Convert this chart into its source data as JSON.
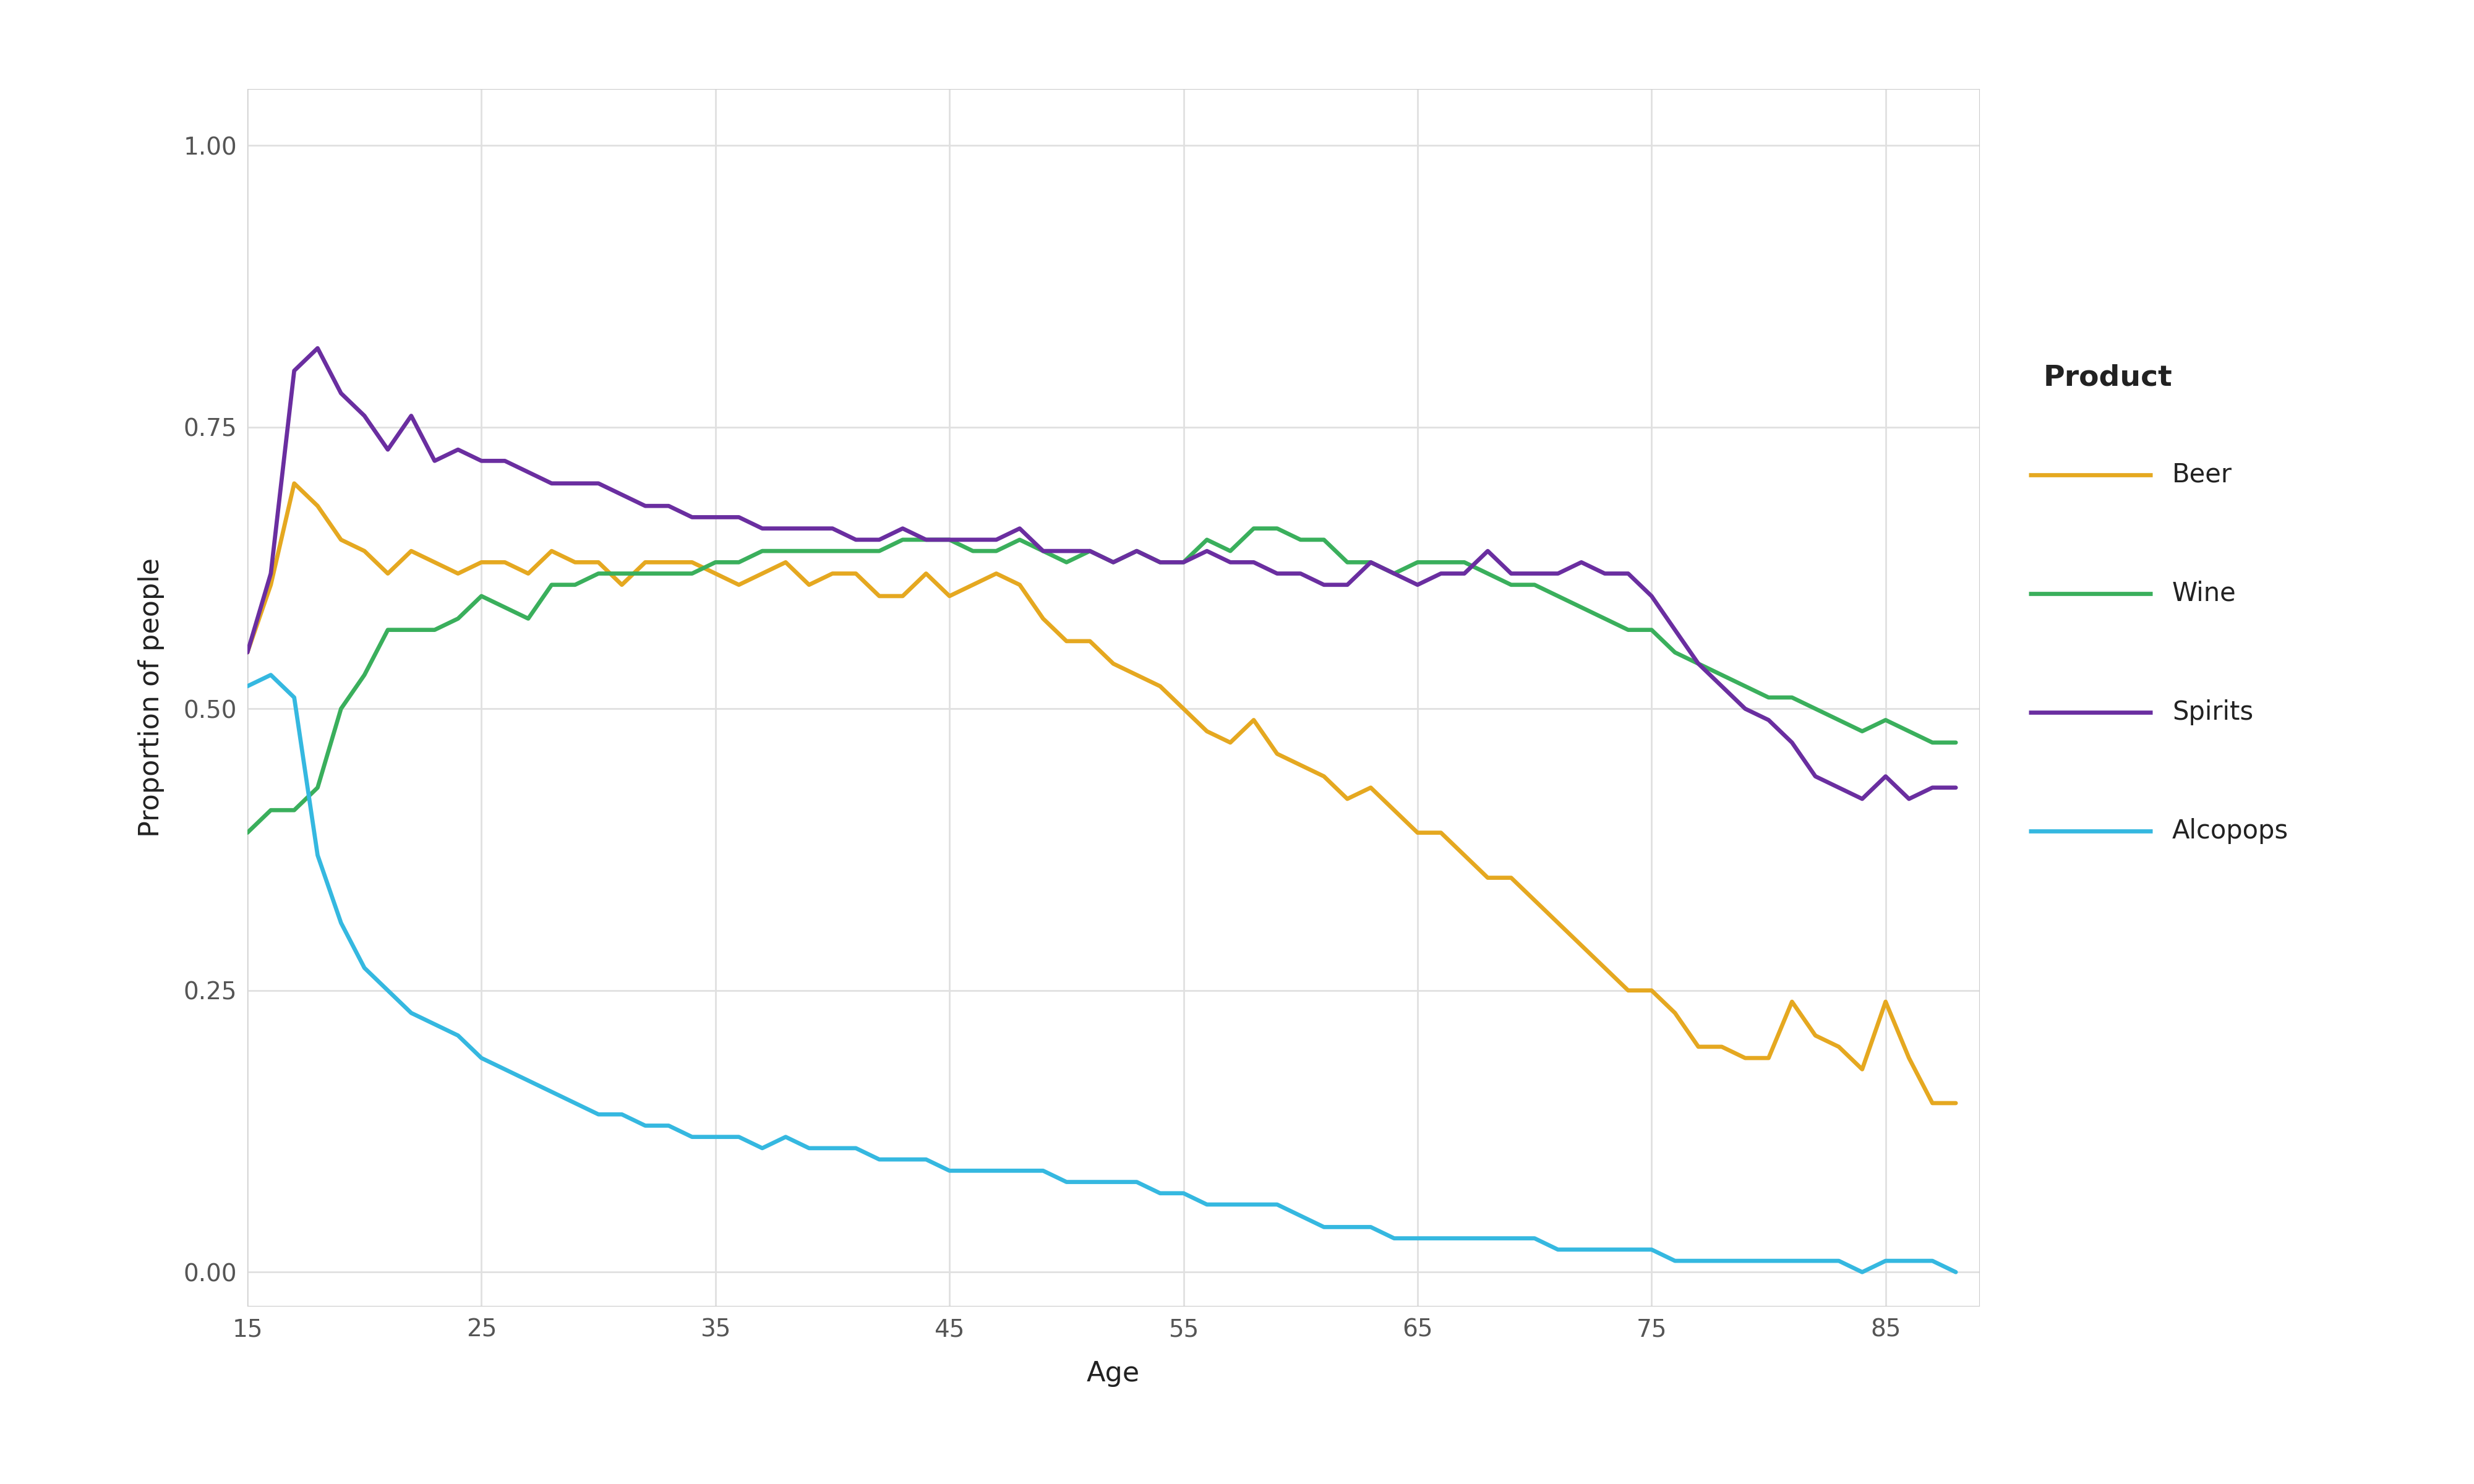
{
  "title": "",
  "xlabel": "Age",
  "ylabel": "Proportion of people",
  "xlim": [
    15,
    89
  ],
  "ylim": [
    -0.03,
    1.05
  ],
  "yticks": [
    0.0,
    0.25,
    0.5,
    0.75,
    1.0
  ],
  "xticks": [
    15,
    25,
    35,
    45,
    55,
    65,
    75,
    85
  ],
  "background_color": "#ffffff",
  "panel_background": "#ffffff",
  "grid_color": "#e0e0e0",
  "legend_title": "Product",
  "series": {
    "Beer": {
      "color": "#E5A820",
      "ages": [
        15,
        16,
        17,
        18,
        19,
        20,
        21,
        22,
        23,
        24,
        25,
        26,
        27,
        28,
        29,
        30,
        31,
        32,
        33,
        34,
        35,
        36,
        37,
        38,
        39,
        40,
        41,
        42,
        43,
        44,
        45,
        46,
        47,
        48,
        49,
        50,
        51,
        52,
        53,
        54,
        55,
        56,
        57,
        58,
        59,
        60,
        61,
        62,
        63,
        64,
        65,
        66,
        67,
        68,
        69,
        70,
        71,
        72,
        73,
        74,
        75,
        76,
        77,
        78,
        79,
        80,
        81,
        82,
        83,
        84,
        85,
        86,
        87,
        88
      ],
      "values": [
        0.55,
        0.61,
        0.7,
        0.68,
        0.65,
        0.64,
        0.62,
        0.64,
        0.63,
        0.62,
        0.63,
        0.63,
        0.62,
        0.64,
        0.63,
        0.63,
        0.61,
        0.63,
        0.63,
        0.63,
        0.62,
        0.61,
        0.62,
        0.63,
        0.61,
        0.62,
        0.62,
        0.6,
        0.6,
        0.62,
        0.6,
        0.61,
        0.62,
        0.61,
        0.58,
        0.56,
        0.56,
        0.54,
        0.53,
        0.52,
        0.5,
        0.48,
        0.47,
        0.49,
        0.46,
        0.45,
        0.44,
        0.42,
        0.43,
        0.41,
        0.39,
        0.39,
        0.37,
        0.35,
        0.35,
        0.33,
        0.31,
        0.29,
        0.27,
        0.25,
        0.25,
        0.23,
        0.2,
        0.2,
        0.19,
        0.19,
        0.24,
        0.21,
        0.2,
        0.18,
        0.24,
        0.19,
        0.15,
        0.15
      ]
    },
    "Wine": {
      "color": "#3aaf5c",
      "ages": [
        15,
        16,
        17,
        18,
        19,
        20,
        21,
        22,
        23,
        24,
        25,
        26,
        27,
        28,
        29,
        30,
        31,
        32,
        33,
        34,
        35,
        36,
        37,
        38,
        39,
        40,
        41,
        42,
        43,
        44,
        45,
        46,
        47,
        48,
        49,
        50,
        51,
        52,
        53,
        54,
        55,
        56,
        57,
        58,
        59,
        60,
        61,
        62,
        63,
        64,
        65,
        66,
        67,
        68,
        69,
        70,
        71,
        72,
        73,
        74,
        75,
        76,
        77,
        78,
        79,
        80,
        81,
        82,
        83,
        84,
        85,
        86,
        87,
        88
      ],
      "values": [
        0.39,
        0.41,
        0.41,
        0.43,
        0.5,
        0.53,
        0.57,
        0.57,
        0.57,
        0.58,
        0.6,
        0.59,
        0.58,
        0.61,
        0.61,
        0.62,
        0.62,
        0.62,
        0.62,
        0.62,
        0.63,
        0.63,
        0.64,
        0.64,
        0.64,
        0.64,
        0.64,
        0.64,
        0.65,
        0.65,
        0.65,
        0.64,
        0.64,
        0.65,
        0.64,
        0.63,
        0.64,
        0.63,
        0.64,
        0.63,
        0.63,
        0.65,
        0.64,
        0.66,
        0.66,
        0.65,
        0.65,
        0.63,
        0.63,
        0.62,
        0.63,
        0.63,
        0.63,
        0.62,
        0.61,
        0.61,
        0.6,
        0.59,
        0.58,
        0.57,
        0.57,
        0.55,
        0.54,
        0.53,
        0.52,
        0.51,
        0.51,
        0.5,
        0.49,
        0.48,
        0.49,
        0.48,
        0.47,
        0.47
      ]
    },
    "Spirits": {
      "color": "#6a2ea0",
      "ages": [
        15,
        16,
        17,
        18,
        19,
        20,
        21,
        22,
        23,
        24,
        25,
        26,
        27,
        28,
        29,
        30,
        31,
        32,
        33,
        34,
        35,
        36,
        37,
        38,
        39,
        40,
        41,
        42,
        43,
        44,
        45,
        46,
        47,
        48,
        49,
        50,
        51,
        52,
        53,
        54,
        55,
        56,
        57,
        58,
        59,
        60,
        61,
        62,
        63,
        64,
        65,
        66,
        67,
        68,
        69,
        70,
        71,
        72,
        73,
        74,
        75,
        76,
        77,
        78,
        79,
        80,
        81,
        82,
        83,
        84,
        85,
        86,
        87,
        88
      ],
      "values": [
        0.55,
        0.62,
        0.8,
        0.82,
        0.78,
        0.76,
        0.73,
        0.76,
        0.72,
        0.73,
        0.72,
        0.72,
        0.71,
        0.7,
        0.7,
        0.7,
        0.69,
        0.68,
        0.68,
        0.67,
        0.67,
        0.67,
        0.66,
        0.66,
        0.66,
        0.66,
        0.65,
        0.65,
        0.66,
        0.65,
        0.65,
        0.65,
        0.65,
        0.66,
        0.64,
        0.64,
        0.64,
        0.63,
        0.64,
        0.63,
        0.63,
        0.64,
        0.63,
        0.63,
        0.62,
        0.62,
        0.61,
        0.61,
        0.63,
        0.62,
        0.61,
        0.62,
        0.62,
        0.64,
        0.62,
        0.62,
        0.62,
        0.63,
        0.62,
        0.62,
        0.6,
        0.57,
        0.54,
        0.52,
        0.5,
        0.49,
        0.47,
        0.44,
        0.43,
        0.42,
        0.44,
        0.42,
        0.43,
        0.43
      ]
    },
    "Alcopops": {
      "color": "#35b8e0",
      "ages": [
        15,
        16,
        17,
        18,
        19,
        20,
        21,
        22,
        23,
        24,
        25,
        26,
        27,
        28,
        29,
        30,
        31,
        32,
        33,
        34,
        35,
        36,
        37,
        38,
        39,
        40,
        41,
        42,
        43,
        44,
        45,
        46,
        47,
        48,
        49,
        50,
        51,
        52,
        53,
        54,
        55,
        56,
        57,
        58,
        59,
        60,
        61,
        62,
        63,
        64,
        65,
        66,
        67,
        68,
        69,
        70,
        71,
        72,
        73,
        74,
        75,
        76,
        77,
        78,
        79,
        80,
        81,
        82,
        83,
        84,
        85,
        86,
        87,
        88
      ],
      "values": [
        0.52,
        0.53,
        0.51,
        0.37,
        0.31,
        0.27,
        0.25,
        0.23,
        0.22,
        0.21,
        0.19,
        0.18,
        0.17,
        0.16,
        0.15,
        0.14,
        0.14,
        0.13,
        0.13,
        0.12,
        0.12,
        0.12,
        0.11,
        0.12,
        0.11,
        0.11,
        0.11,
        0.1,
        0.1,
        0.1,
        0.09,
        0.09,
        0.09,
        0.09,
        0.09,
        0.08,
        0.08,
        0.08,
        0.08,
        0.07,
        0.07,
        0.06,
        0.06,
        0.06,
        0.06,
        0.05,
        0.04,
        0.04,
        0.04,
        0.03,
        0.03,
        0.03,
        0.03,
        0.03,
        0.03,
        0.03,
        0.02,
        0.02,
        0.02,
        0.02,
        0.02,
        0.01,
        0.01,
        0.01,
        0.01,
        0.01,
        0.01,
        0.01,
        0.01,
        0.0,
        0.01,
        0.01,
        0.01,
        0.0
      ]
    }
  },
  "line_width": 2.2,
  "axis_label_fontsize": 32,
  "tick_fontsize": 28,
  "legend_fontsize": 30,
  "legend_title_fontsize": 34
}
